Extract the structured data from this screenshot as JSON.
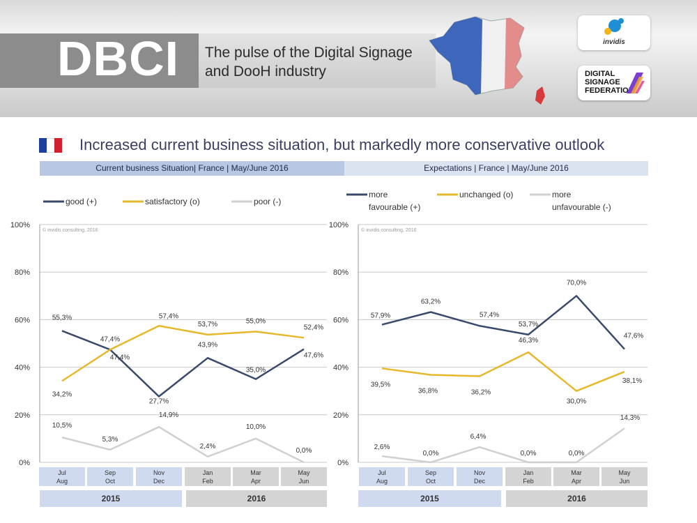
{
  "banner": {
    "brand": "DBCI",
    "tagline_line1": "The pulse of the Digital Signage",
    "tagline_line2": "and DooH industry",
    "logo_invidis": "invidis",
    "logo_dsf_line1": "DIGITAL",
    "logo_dsf_line2": "SIGNAGE",
    "logo_dsf_line3": "FEDERATION"
  },
  "headline": "Increased current business situation, but markedly more conservative outlook",
  "colors": {
    "good": "#3a4a6b",
    "satisfactory": "#e6b82c",
    "poor": "#d0d0d0",
    "flag_blue": "#1f3f9c",
    "flag_white": "#ffffff",
    "flag_red": "#d2202f"
  },
  "chart_data": [
    {
      "type": "line",
      "subtitle": "Current business Situation| France | May/June 2016",
      "watermark": "© invidis consulting, 2016",
      "categories": [
        [
          "Jul",
          "Aug"
        ],
        [
          "Sep",
          "Oct"
        ],
        [
          "Nov",
          "Dec"
        ],
        [
          "Jan",
          "Feb"
        ],
        [
          "Mar",
          "Apr"
        ],
        [
          "May",
          "Jun"
        ]
      ],
      "year_groups": [
        {
          "label": "2015",
          "span": 3
        },
        {
          "label": "2016",
          "span": 3
        }
      ],
      "ylim": [
        0,
        100
      ],
      "yticks": [
        "0%",
        "20%",
        "40%",
        "60%",
        "80%",
        "100%"
      ],
      "series": [
        {
          "name": "good (+)",
          "color": "#3a4a6b",
          "values": [
            55.3,
            47.4,
            27.7,
            43.9,
            35.0,
            47.6
          ],
          "labels": [
            "55,3%",
            "47,4%",
            "27,7%",
            "43,9%",
            "35,0%",
            "47,6%"
          ]
        },
        {
          "name": "satisfactory (o)",
          "color": "#e6b82c",
          "values": [
            34.2,
            47.4,
            57.4,
            53.7,
            55.0,
            52.4
          ],
          "labels": [
            "34,2%",
            "47,4%",
            "57,4%",
            "53,7%",
            "55,0%",
            "52,4%"
          ]
        },
        {
          "name": "poor (-)",
          "color": "#d0d0d0",
          "values": [
            10.5,
            5.3,
            14.9,
            2.4,
            10.0,
            0.0
          ],
          "labels": [
            "10,5%",
            "5,3%",
            "14,9%",
            "2,4%",
            "10,0%",
            "0,0%"
          ]
        }
      ]
    },
    {
      "type": "line",
      "subtitle": "Expectations | France | May/June 2016",
      "watermark": "© invidis consulting, 2016",
      "categories": [
        [
          "Jul",
          "Aug"
        ],
        [
          "Sep",
          "Oct"
        ],
        [
          "Nov",
          "Dec"
        ],
        [
          "Jan",
          "Feb"
        ],
        [
          "Mar",
          "Apr"
        ],
        [
          "May",
          "Jun"
        ]
      ],
      "year_groups": [
        {
          "label": "2015",
          "span": 3
        },
        {
          "label": "2016",
          "span": 3
        }
      ],
      "ylim": [
        0,
        100
      ],
      "yticks": [
        "0%",
        "20%",
        "40%",
        "60%",
        "80%",
        "100%"
      ],
      "series": [
        {
          "name": "more favourable (+)",
          "name_lines": [
            "more",
            "favourable (+)"
          ],
          "color": "#3a4a6b",
          "values": [
            57.9,
            63.2,
            57.4,
            53.7,
            70.0,
            47.6
          ],
          "labels": [
            "57,9%",
            "63,2%",
            "57,4%",
            "53,7%",
            "70,0%",
            "47,6%"
          ]
        },
        {
          "name": "unchanged (o)",
          "name_lines": [
            "unchanged (o)"
          ],
          "color": "#e6b82c",
          "values": [
            39.5,
            36.8,
            36.2,
            46.3,
            30.0,
            38.1
          ],
          "labels": [
            "39,5%",
            "36,8%",
            "36,2%",
            "46,3%",
            "30,0%",
            "38,1%"
          ]
        },
        {
          "name": "more unfavourable (-)",
          "name_lines": [
            "more",
            "unfavourable (-)"
          ],
          "color": "#d0d0d0",
          "values": [
            2.6,
            0.0,
            6.4,
            0.0,
            0.0,
            14.3
          ],
          "labels": [
            "2,6%",
            "0,0%",
            "6,4%",
            "0,0%",
            "0,0%",
            "14,3%"
          ]
        }
      ]
    }
  ]
}
